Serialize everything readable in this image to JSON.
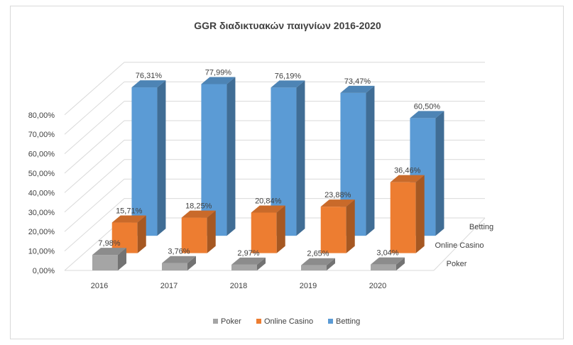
{
  "chart_data": {
    "type": "bar",
    "title": "GGR διαδικτυακών παιγνίων 2016-2020",
    "categories": [
      "2016",
      "2017",
      "2018",
      "2019",
      "2020"
    ],
    "series": [
      {
        "name": "Poker",
        "values": [
          7.98,
          3.76,
          2.97,
          2.65,
          3.04
        ],
        "labels": [
          "7,98%",
          "3,76%",
          "2,97%",
          "2,65%",
          "3,04%"
        ],
        "color": "#a5a5a5"
      },
      {
        "name": "Online Casino",
        "values": [
          15.71,
          18.25,
          20.84,
          23.88,
          36.46
        ],
        "labels": [
          "15,71%",
          "18,25%",
          "20,84%",
          "23,88%",
          "36,46%"
        ],
        "color": "#ed7d31"
      },
      {
        "name": "Betting",
        "values": [
          76.31,
          77.99,
          76.19,
          73.47,
          60.5
        ],
        "labels": [
          "76,31%",
          "77,99%",
          "76,19%",
          "73,47%",
          "60,50%"
        ],
        "color": "#5b9bd5"
      }
    ],
    "yticks": [
      "0,00%",
      "10,00%",
      "20,00%",
      "30,00%",
      "40,00%",
      "50,00%",
      "60,00%",
      "70,00%",
      "80,00%"
    ],
    "ylim": [
      0,
      80
    ],
    "grid": true,
    "legend_position": "bottom",
    "legend": [
      "Poker",
      "Online Casino",
      "Betting"
    ],
    "depth_labels": [
      "Poker",
      "Online Casino",
      "Betting"
    ]
  }
}
